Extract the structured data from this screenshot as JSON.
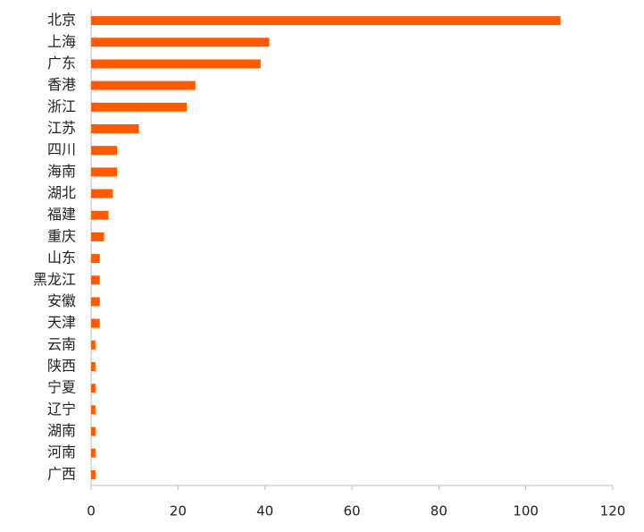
{
  "chart_data": {
    "type": "barh",
    "categories": [
      "北京",
      "上海",
      "广东",
      "香港",
      "浙江",
      "江苏",
      "四川",
      "海南",
      "湖北",
      "福建",
      "重庆",
      "山东",
      "黑龙江",
      "安徽",
      "天津",
      "云南",
      "陕西",
      "宁夏",
      "辽宁",
      "湖南",
      "河南",
      "广西"
    ],
    "values": [
      108,
      41,
      39,
      24,
      22,
      11,
      6,
      6,
      5,
      4,
      3,
      2,
      2,
      2,
      2,
      1,
      1,
      1,
      1,
      1,
      1,
      1
    ],
    "color": "#ff5a00",
    "xlim": [
      0,
      120
    ],
    "xticks": [
      0,
      20,
      40,
      60,
      80,
      100,
      120
    ],
    "grid": false
  }
}
